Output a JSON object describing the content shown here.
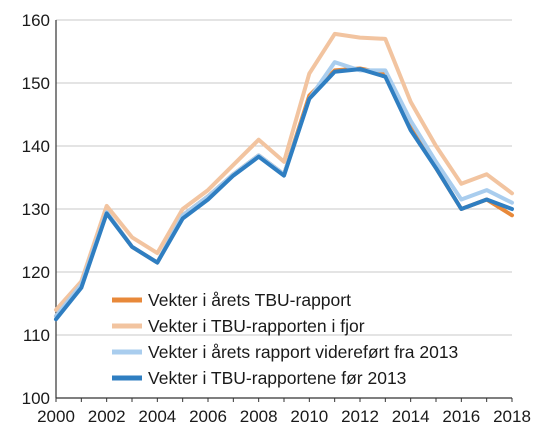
{
  "chart_data": {
    "type": "line",
    "title": "",
    "xlabel": "",
    "ylabel": "",
    "x": [
      2000,
      2001,
      2002,
      2003,
      2004,
      2005,
      2006,
      2007,
      2008,
      2009,
      2010,
      2011,
      2012,
      2013,
      2014,
      2015,
      2016,
      2017,
      2018
    ],
    "xlim": [
      2000,
      2018
    ],
    "ylim": [
      100,
      160
    ],
    "x_ticks": [
      "2000",
      "2002",
      "2004",
      "2006",
      "2008",
      "2010",
      "2012",
      "2014",
      "2016",
      "2018"
    ],
    "y_ticks": [
      "100",
      "110",
      "120",
      "130",
      "140",
      "150",
      "160"
    ],
    "grid": "horizontal",
    "legend_position": "bottom-center",
    "series": [
      {
        "name": "Vekter i årets TBU-rapport",
        "color": "#e8893a",
        "values": [
          113,
          118,
          129.5,
          124,
          121.5,
          129,
          132,
          135.5,
          138.5,
          135.5,
          148,
          152,
          152.3,
          151.5,
          143,
          136.5,
          130,
          131.5,
          129
        ]
      },
      {
        "name": "Vekter i TBU-rapporten i fjor",
        "color": "#f2c4a0",
        "values": [
          114,
          118.5,
          130.5,
          125.5,
          123,
          130,
          133,
          137,
          141,
          137.5,
          151.5,
          157.8,
          157.2,
          157,
          147,
          140,
          134,
          135.5,
          132.5
        ]
      },
      {
        "name": "Vekter i årets rapport videreført fra 2013",
        "color": "#a9cdee",
        "values": [
          113,
          118,
          129.5,
          124,
          121.5,
          129,
          132,
          135.5,
          138.5,
          135.5,
          147.5,
          153.3,
          152,
          152,
          144,
          137.5,
          131.5,
          133,
          131
        ]
      },
      {
        "name": "Vekter i TBU-rapportene før 2013",
        "color": "#2f7ec1",
        "values": [
          112.5,
          117.5,
          129.3,
          124,
          121.5,
          128.5,
          131.5,
          135.3,
          138.3,
          135.3,
          147.5,
          151.8,
          152.2,
          151,
          142.5,
          136.5,
          130,
          131.5,
          130
        ]
      }
    ]
  }
}
